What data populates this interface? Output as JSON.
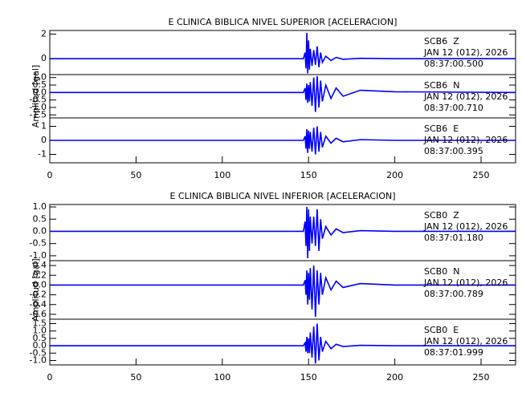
{
  "chart_data": [
    {
      "type": "line",
      "title": "E CLINICA BIBLICA NIVEL SUPERIOR [ACELERACION]",
      "station": "SCB6  Z",
      "date": "JAN 12 (012), 2026",
      "time": "08:37:00.500",
      "xlim": [
        0,
        270
      ],
      "ylim": [
        -1.3,
        2.3
      ],
      "yticks": [
        0,
        2
      ],
      "color": "#0000ff",
      "x": [
        0,
        147,
        148,
        148.5,
        149,
        149.5,
        150,
        150.5,
        151,
        152,
        153,
        154,
        155,
        156,
        157,
        158,
        160,
        163,
        166,
        170,
        180,
        200,
        270
      ],
      "values": [
        0,
        0,
        0.5,
        -0.8,
        2.1,
        -1.2,
        1.5,
        -0.9,
        0.8,
        -0.6,
        0.7,
        -0.5,
        1.0,
        -0.7,
        0.5,
        -0.3,
        0.2,
        -0.15,
        0.1,
        -0.05,
        0.03,
        0,
        0
      ]
    },
    {
      "type": "line",
      "ylabel": "Amplitud [gal]",
      "station": "SCB6  N",
      "date": "JAN 12 (012), 2026",
      "time": "08:37:00.710",
      "xlim": [
        0,
        270
      ],
      "ylim": [
        -1.7,
        1.2
      ],
      "yticks": [
        {
          "value": 1,
          "label": "1.0"
        },
        0.5,
        {
          "value": 0,
          "label": "0.0"
        },
        -0.5,
        {
          "value": -1,
          "label": "-1.0"
        },
        -1.5
      ],
      "color": "#0000ff",
      "x": [
        0,
        147,
        148,
        148.5,
        149,
        149.5,
        150,
        150.5,
        151,
        152,
        153,
        154,
        155,
        156,
        157,
        158,
        160,
        163,
        166,
        170,
        180,
        200,
        270
      ],
      "values": [
        0,
        0,
        0.3,
        -0.5,
        0.6,
        -0.7,
        0.5,
        -0.6,
        0.7,
        -0.9,
        1.0,
        -1.3,
        1.1,
        -1.0,
        0.8,
        -0.6,
        0.5,
        -0.4,
        0.3,
        -0.25,
        0.15,
        0.05,
        0
      ]
    },
    {
      "type": "line",
      "station": "SCB6  E",
      "date": "JAN 12 (012), 2026",
      "time": "08:37:00.395",
      "xlim": [
        0,
        270
      ],
      "ylim": [
        -1.6,
        1.6
      ],
      "yticks": [
        -1,
        0,
        1
      ],
      "xticks": [
        0,
        50,
        100,
        150,
        200,
        250
      ],
      "color": "#0000ff",
      "x": [
        0,
        147,
        148,
        148.5,
        149,
        149.5,
        150,
        150.5,
        151,
        152,
        153,
        154,
        155,
        156,
        157,
        158,
        160,
        163,
        166,
        170,
        180,
        200,
        270
      ],
      "values": [
        0,
        0,
        0.3,
        -0.6,
        0.8,
        -0.9,
        0.7,
        -0.6,
        0.6,
        -0.8,
        0.9,
        -1.0,
        1.0,
        -0.8,
        0.6,
        -0.5,
        0.3,
        -0.2,
        0.15,
        -0.1,
        0.05,
        0,
        0
      ]
    },
    {
      "type": "line",
      "title": "E CLINICA BIBLICA NIVEL INFERIOR [ACELERACION]",
      "station": "SCB0  Z",
      "date": "JAN 12 (012), 2026",
      "time": "08:37:01.180",
      "xlim": [
        0,
        270
      ],
      "ylim": [
        -1.2,
        1.1
      ],
      "yticks": [
        {
          "value": 1,
          "label": "1.0"
        },
        0.5,
        {
          "value": 0,
          "label": "0.0"
        },
        -0.5,
        {
          "value": -1,
          "label": "-1.0"
        }
      ],
      "color": "#0000ff",
      "x": [
        0,
        147,
        148,
        148.5,
        149,
        149.5,
        150,
        150.5,
        151,
        152,
        153,
        154,
        155,
        156,
        157,
        158,
        160,
        163,
        166,
        170,
        180,
        200,
        270
      ],
      "values": [
        0,
        0,
        0.4,
        -0.6,
        1.0,
        -1.1,
        0.9,
        -0.8,
        0.6,
        -0.5,
        0.6,
        -0.6,
        0.9,
        -0.8,
        0.5,
        -0.3,
        0.2,
        -0.15,
        0.1,
        -0.05,
        0.03,
        0,
        0
      ]
    },
    {
      "type": "line",
      "ylabel": "Amplitud [gal]",
      "station": "SCB0  N",
      "date": "JAN 12 (012), 2026",
      "time": "08:37:00.789",
      "xlim": [
        0,
        270
      ],
      "ylim": [
        -0.7,
        0.5
      ],
      "yticks": [
        0.4,
        0.2,
        {
          "value": 0,
          "label": "0.0"
        },
        -0.2,
        -0.4,
        -0.6
      ],
      "color": "#0000ff",
      "x": [
        0,
        147,
        148,
        148.5,
        149,
        149.5,
        150,
        150.5,
        151,
        152,
        153,
        154,
        155,
        156,
        157,
        158,
        160,
        163,
        166,
        170,
        180,
        200,
        270
      ],
      "values": [
        0,
        0,
        0.1,
        -0.2,
        0.3,
        -0.4,
        0.25,
        -0.3,
        0.35,
        -0.5,
        0.4,
        -0.65,
        0.3,
        -0.4,
        0.25,
        -0.2,
        0.15,
        -0.1,
        0.08,
        -0.05,
        0.03,
        0,
        0
      ]
    },
    {
      "type": "line",
      "station": "SCB0  E",
      "date": "JAN 12 (012), 2026",
      "time": "08:37:01.999",
      "xlim": [
        0,
        270
      ],
      "ylim": [
        -1.3,
        1.8
      ],
      "yticks": [
        1.5,
        {
          "value": 1,
          "label": "1.0"
        },
        0.5,
        {
          "value": 0,
          "label": "0.0"
        },
        -0.5,
        {
          "value": -1,
          "label": "-1.0"
        }
      ],
      "xticks": [
        0,
        50,
        100,
        150,
        200,
        250
      ],
      "color": "#0000ff",
      "x": [
        0,
        147,
        148,
        148.5,
        149,
        149.5,
        150,
        150.5,
        151,
        152,
        153,
        154,
        155,
        156,
        157,
        158,
        160,
        163,
        166,
        170,
        180,
        200,
        270
      ],
      "values": [
        0,
        0,
        0.2,
        -0.4,
        0.6,
        -0.5,
        0.5,
        -0.5,
        0.9,
        -0.8,
        1.3,
        -1.2,
        1.5,
        -1.0,
        0.6,
        -0.4,
        0.3,
        -0.2,
        0.1,
        -0.05,
        0.03,
        0,
        0
      ]
    }
  ]
}
